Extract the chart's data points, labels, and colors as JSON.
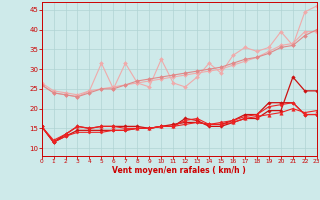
{
  "xlabel": "Vent moyen/en rafales ( km/h )",
  "xlim": [
    0,
    23
  ],
  "ylim": [
    8,
    47
  ],
  "yticks": [
    10,
    15,
    20,
    25,
    30,
    35,
    40,
    45
  ],
  "xticks": [
    0,
    1,
    2,
    3,
    4,
    5,
    6,
    7,
    8,
    9,
    10,
    11,
    12,
    13,
    14,
    15,
    16,
    17,
    18,
    19,
    20,
    21,
    22,
    23
  ],
  "bg_color": "#ceeaea",
  "grid_color": "#b0d4d4",
  "lines": [
    {
      "x": [
        0,
        1,
        2,
        3,
        4,
        5,
        6,
        7,
        8,
        9,
        10,
        11,
        12,
        13,
        14,
        15,
        16,
        17,
        18,
        19,
        20,
        21,
        22,
        23
      ],
      "y": [
        26.5,
        24.5,
        24.0,
        23.5,
        24.5,
        31.5,
        25.0,
        31.5,
        26.5,
        25.5,
        32.5,
        26.5,
        25.5,
        28.0,
        31.5,
        29.0,
        33.5,
        35.5,
        34.5,
        35.5,
        39.5,
        36.0,
        44.5,
        46.0
      ],
      "color": "#f0aaaa",
      "marker": "D",
      "markersize": 2.0,
      "linewidth": 0.8
    },
    {
      "x": [
        0,
        1,
        2,
        3,
        4,
        5,
        6,
        7,
        8,
        9,
        10,
        11,
        12,
        13,
        14,
        15,
        16,
        17,
        18,
        19,
        20,
        21,
        22,
        23
      ],
      "y": [
        26.0,
        24.0,
        23.5,
        23.0,
        24.5,
        25.0,
        25.5,
        26.0,
        26.5,
        27.0,
        27.5,
        28.0,
        28.5,
        29.0,
        29.5,
        30.0,
        31.0,
        32.0,
        33.0,
        34.5,
        36.0,
        36.5,
        39.5,
        39.5
      ],
      "color": "#f0aaaa",
      "marker": "D",
      "markersize": 2.0,
      "linewidth": 0.8
    },
    {
      "x": [
        0,
        1,
        2,
        3,
        4,
        5,
        6,
        7,
        8,
        9,
        10,
        11,
        12,
        13,
        14,
        15,
        16,
        17,
        18,
        19,
        20,
        21,
        22,
        23
      ],
      "y": [
        26.0,
        24.0,
        23.5,
        23.0,
        24.0,
        25.0,
        25.0,
        26.0,
        27.0,
        27.5,
        28.0,
        28.5,
        29.0,
        29.5,
        30.0,
        30.5,
        31.5,
        32.5,
        33.0,
        34.0,
        35.5,
        36.0,
        38.5,
        40.0
      ],
      "color": "#e08888",
      "marker": "D",
      "markersize": 2.0,
      "linewidth": 0.8
    },
    {
      "x": [
        0,
        1,
        2,
        3,
        4,
        5,
        6,
        7,
        8,
        9,
        10,
        11,
        12,
        13,
        14,
        15,
        16,
        17,
        18,
        19,
        20,
        21,
        22,
        23
      ],
      "y": [
        15.5,
        11.5,
        13.5,
        15.5,
        15.0,
        15.5,
        15.5,
        15.5,
        15.5,
        15.0,
        15.5,
        15.5,
        17.5,
        17.0,
        15.5,
        15.5,
        16.5,
        17.5,
        17.5,
        19.5,
        19.5,
        28.0,
        24.5,
        24.5
      ],
      "color": "#cc1111",
      "marker": "D",
      "markersize": 1.8,
      "linewidth": 0.9
    },
    {
      "x": [
        0,
        1,
        2,
        3,
        4,
        5,
        6,
        7,
        8,
        9,
        10,
        11,
        12,
        13,
        14,
        15,
        16,
        17,
        18,
        19,
        20,
        21,
        22,
        23
      ],
      "y": [
        15.5,
        11.5,
        13.0,
        14.5,
        14.5,
        14.5,
        14.5,
        14.5,
        15.0,
        15.0,
        15.5,
        16.0,
        16.5,
        16.5,
        16.0,
        16.0,
        17.0,
        18.5,
        18.5,
        21.5,
        21.5,
        21.5,
        18.5,
        18.5
      ],
      "color": "#cc1111",
      "marker": "D",
      "markersize": 1.8,
      "linewidth": 0.9
    },
    {
      "x": [
        0,
        1,
        2,
        3,
        4,
        5,
        6,
        7,
        8,
        9,
        10,
        11,
        12,
        13,
        14,
        15,
        16,
        17,
        18,
        19,
        20,
        21,
        22,
        23
      ],
      "y": [
        15.5,
        11.5,
        13.0,
        14.0,
        14.0,
        14.0,
        14.5,
        14.5,
        15.0,
        15.0,
        15.5,
        15.5,
        16.0,
        16.5,
        16.0,
        16.5,
        17.0,
        18.0,
        18.5,
        20.5,
        21.0,
        21.5,
        18.5,
        18.5
      ],
      "color": "#ee2222",
      "marker": "D",
      "markersize": 1.6,
      "linewidth": 0.8
    },
    {
      "x": [
        0,
        1,
        2,
        3,
        4,
        5,
        6,
        7,
        8,
        9,
        10,
        11,
        12,
        13,
        14,
        15,
        16,
        17,
        18,
        19,
        20,
        21,
        22,
        23
      ],
      "y": [
        15.5,
        12.0,
        13.5,
        15.5,
        15.0,
        15.5,
        15.5,
        15.0,
        15.0,
        15.0,
        15.5,
        15.5,
        17.0,
        17.5,
        16.0,
        16.0,
        16.5,
        17.5,
        18.0,
        18.5,
        19.0,
        20.0,
        19.0,
        19.5
      ],
      "color": "#ee2222",
      "marker": "^",
      "markersize": 2.5,
      "linewidth": 0.8
    }
  ]
}
